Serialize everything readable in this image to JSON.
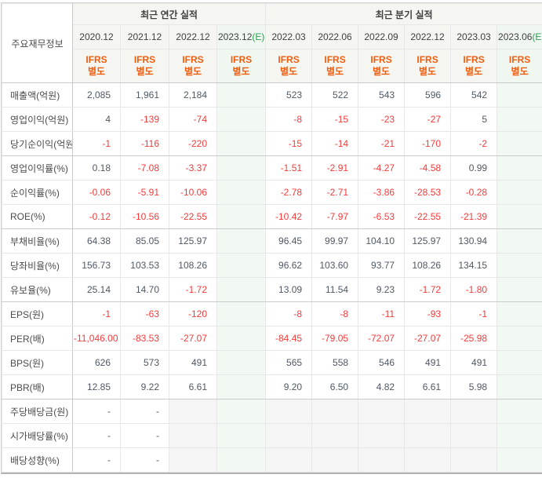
{
  "colors": {
    "negative_red": "#f43b3b",
    "ifrs_orange": "#ef5e0e",
    "estimate_green": "#2ba052"
  },
  "table": {
    "row_header": "주요재무정보",
    "group_headers": {
      "annual": "최근 연간 실적",
      "quarterly": "최근 분기 실적"
    },
    "ifrs": {
      "line1": "IFRS",
      "line2": "별도"
    },
    "columns": [
      {
        "label": "2020.12",
        "section": "annual",
        "estimate": false
      },
      {
        "label": "2021.12",
        "section": "annual",
        "estimate": false
      },
      {
        "label": "2022.12",
        "section": "annual",
        "estimate": false
      },
      {
        "label": "2023.12",
        "suffix": "(E)",
        "section": "annual",
        "estimate": true
      },
      {
        "label": "2022.03",
        "section": "quarterly",
        "estimate": false
      },
      {
        "label": "2022.06",
        "section": "quarterly",
        "estimate": false
      },
      {
        "label": "2022.09",
        "section": "quarterly",
        "estimate": false
      },
      {
        "label": "2022.12",
        "section": "quarterly",
        "estimate": false
      },
      {
        "label": "2023.03",
        "section": "quarterly",
        "estimate": false
      },
      {
        "label": "2023.06",
        "suffix": "(E)",
        "section": "quarterly",
        "estimate": true
      }
    ],
    "rows": [
      {
        "label": "매출액(억원)",
        "values": [
          "2,085",
          "1,961",
          "2,184",
          "",
          "523",
          "522",
          "543",
          "596",
          "542",
          ""
        ]
      },
      {
        "label": "영업이익(억원)",
        "values": [
          "4",
          "-139",
          "-74",
          "",
          "-8",
          "-15",
          "-23",
          "-27",
          "5",
          ""
        ]
      },
      {
        "label": "당기순이익(억원)",
        "values": [
          "-1",
          "-116",
          "-220",
          "",
          "-15",
          "-14",
          "-21",
          "-170",
          "-2",
          ""
        ]
      },
      {
        "label": "영업이익률(%)",
        "values": [
          "0.18",
          "-7.08",
          "-3.37",
          "",
          "-1.51",
          "-2.91",
          "-4.27",
          "-4.58",
          "0.99",
          ""
        ]
      },
      {
        "label": "순이익률(%)",
        "values": [
          "-0.06",
          "-5.91",
          "-10.06",
          "",
          "-2.78",
          "-2.71",
          "-3.86",
          "-28.53",
          "-0.28",
          ""
        ]
      },
      {
        "label": "ROE(%)",
        "values": [
          "-0.12",
          "-10.56",
          "-22.55",
          "",
          "-10.42",
          "-7.97",
          "-6.53",
          "-22.55",
          "-21.39",
          ""
        ]
      },
      {
        "label": "부채비율(%)",
        "values": [
          "64.38",
          "85.05",
          "125.97",
          "",
          "96.45",
          "99.97",
          "104.10",
          "125.97",
          "130.94",
          ""
        ]
      },
      {
        "label": "당좌비율(%)",
        "values": [
          "156.73",
          "103.53",
          "108.26",
          "",
          "96.62",
          "103.60",
          "93.77",
          "108.26",
          "134.15",
          ""
        ]
      },
      {
        "label": "유보율(%)",
        "values": [
          "25.14",
          "14.70",
          "-1.72",
          "",
          "13.09",
          "11.54",
          "9.23",
          "-1.72",
          "-1.80",
          ""
        ]
      },
      {
        "label": "EPS(원)",
        "values": [
          "-1",
          "-63",
          "-120",
          "",
          "-8",
          "-8",
          "-11",
          "-93",
          "-1",
          ""
        ]
      },
      {
        "label": "PER(배)",
        "values": [
          "-11,046.00",
          "-83.53",
          "-27.07",
          "",
          "-84.45",
          "-79.05",
          "-72.07",
          "-27.07",
          "-25.98",
          ""
        ]
      },
      {
        "label": "BPS(원)",
        "values": [
          "626",
          "573",
          "491",
          "",
          "565",
          "558",
          "546",
          "491",
          "491",
          ""
        ]
      },
      {
        "label": "PBR(배)",
        "values": [
          "12.85",
          "9.22",
          "6.61",
          "",
          "9.20",
          "6.50",
          "4.82",
          "6.61",
          "5.98",
          ""
        ]
      },
      {
        "label": "주당배당금(원)",
        "values": [
          "-",
          "-",
          "",
          "",
          "",
          "",
          "",
          "",
          "",
          ""
        ]
      },
      {
        "label": "시가배당률(%)",
        "values": [
          "-",
          "-",
          "",
          "",
          "",
          "",
          "",
          "",
          "",
          ""
        ]
      },
      {
        "label": "배당성향(%)",
        "values": [
          "-",
          "-",
          "",
          "",
          "",
          "",
          "",
          "",
          "",
          ""
        ]
      }
    ]
  }
}
